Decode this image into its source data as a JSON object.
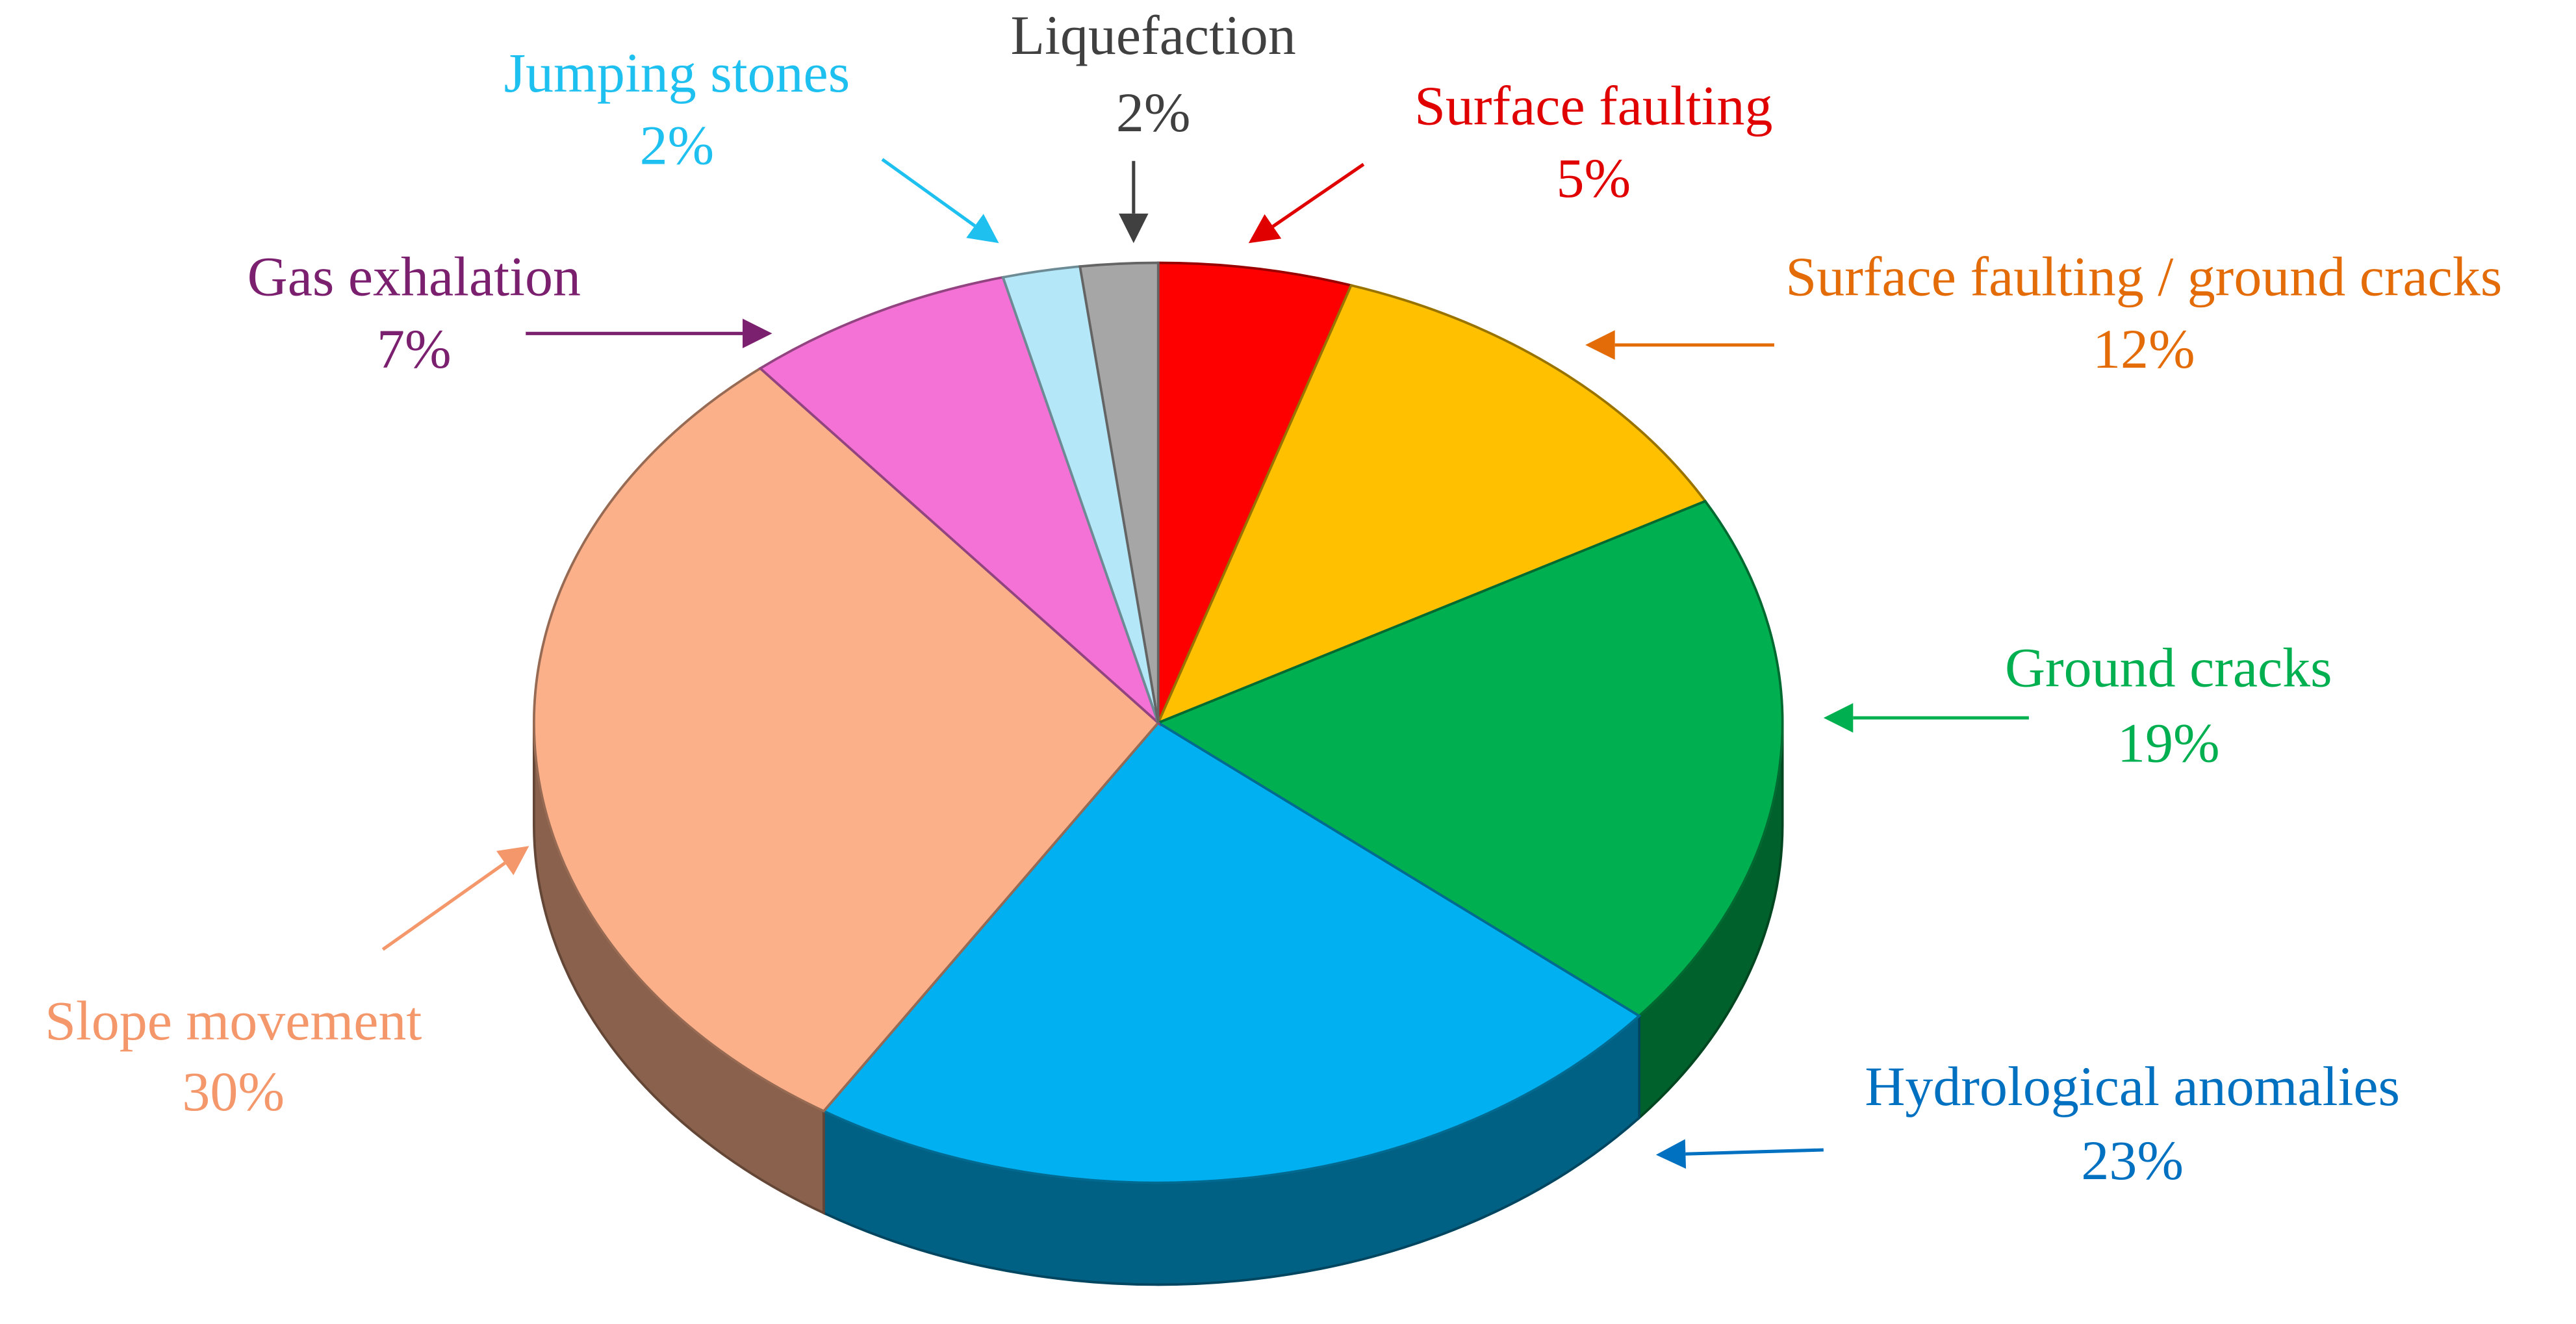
{
  "chart_data": {
    "type": "pie",
    "categories": [
      "Surface faulting",
      "Surface faulting / ground cracks",
      "Ground cracks",
      "Hydrological anomalies",
      "Slope movement",
      "Gas exhalation",
      "Jumping stones",
      "Liquefaction"
    ],
    "values": [
      5,
      12,
      19,
      23,
      30,
      7,
      2,
      2
    ],
    "value_labels": [
      "5%",
      "12%",
      "19%",
      "23%",
      "30%",
      "7%",
      "2%",
      "2%"
    ],
    "colors": [
      "#ff0000",
      "#ffc000",
      "#00b050",
      "#00b0f0",
      "#fbb08a",
      "#f472d6",
      "#b4e8f8",
      "#a6a6a6"
    ],
    "label_colors": [
      "#e00000",
      "#e36c09",
      "#00b050",
      "#0070c0",
      "#f4976b",
      "#7b1f6f",
      "#1ec0f0",
      "#404040"
    ]
  }
}
